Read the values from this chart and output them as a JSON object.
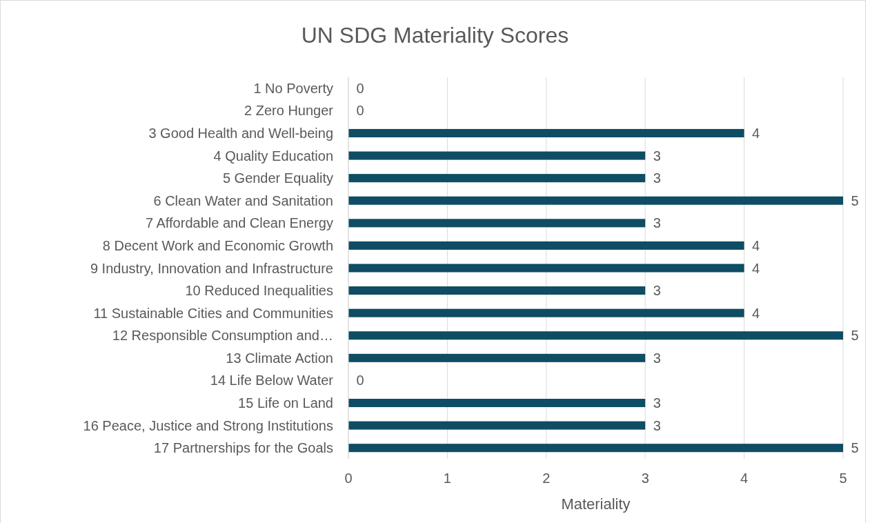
{
  "chart_data": {
    "type": "bar",
    "orientation": "horizontal",
    "title": "UN SDG Materiality Scores",
    "xlabel": "Materiality",
    "categories": [
      "1 No Poverty",
      "2 Zero Hunger",
      "3 Good Health and Well-being",
      "4 Quality Education",
      "5 Gender Equality",
      "6 Clean Water and Sanitation",
      "7 Affordable and Clean Energy",
      "8 Decent Work and Economic Growth",
      "9 Industry, Innovation and Infrastructure",
      "10 Reduced Inequalities",
      "11 Sustainable Cities and Communities",
      "12 Responsible Consumption and…",
      "13 Climate Action",
      "14 Life Below Water",
      "15 Life on Land",
      "16 Peace, Justice and Strong Institutions",
      "17 Partnerships for the Goals"
    ],
    "values": [
      0,
      0,
      4,
      3,
      3,
      5,
      3,
      4,
      4,
      3,
      4,
      5,
      3,
      0,
      3,
      3,
      5
    ],
    "color": "#0e4d64",
    "xlim": [
      0,
      5
    ],
    "xticks": [
      0,
      1,
      2,
      3,
      4,
      5
    ],
    "grid": "x",
    "data_labels": true
  }
}
